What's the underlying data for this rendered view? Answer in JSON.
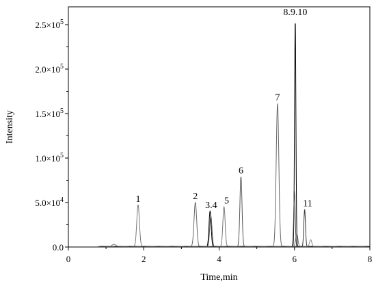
{
  "chart_data": {
    "type": "line",
    "title": "",
    "xlabel": "Time,min",
    "ylabel": "Intensity",
    "xlim": [
      0,
      8
    ],
    "ylim": [
      0,
      270000
    ],
    "grid": false,
    "x_ticks": [
      0,
      2,
      4,
      6,
      8
    ],
    "x_tick_labels": [
      "0",
      "2",
      "4",
      "6",
      "8"
    ],
    "y_ticks": [
      0,
      50000,
      100000,
      150000,
      200000,
      250000
    ],
    "y_tick_labels": [
      {
        "mantissa": "0.0",
        "exponent": ""
      },
      {
        "mantissa": "5.0×10",
        "exponent": "4"
      },
      {
        "mantissa": "1.0×10",
        "exponent": "5"
      },
      {
        "mantissa": "1.5×10",
        "exponent": "5"
      },
      {
        "mantissa": "2.0×10",
        "exponent": "5"
      },
      {
        "mantissa": "2.5×10",
        "exponent": "5"
      }
    ],
    "series": [
      {
        "peaks": [
          {
            "t": 1.21,
            "h": 2500,
            "w": 0.05
          },
          {
            "t": 1.85,
            "h": 47000,
            "w": 0.035
          }
        ],
        "color": "#777777"
      },
      {
        "peaks": [
          {
            "t": 3.37,
            "h": 50000,
            "w": 0.035
          }
        ],
        "color": "#666666"
      },
      {
        "peaks": [
          {
            "t": 3.76,
            "h": 40000,
            "w": 0.028
          }
        ],
        "color": "#000000"
      },
      {
        "peaks": [
          {
            "t": 3.78,
            "h": 35000,
            "w": 0.03
          }
        ],
        "color": "#555555"
      },
      {
        "peaks": [
          {
            "t": 4.13,
            "h": 45000,
            "w": 0.03
          }
        ],
        "color": "#777777"
      },
      {
        "peaks": [
          {
            "t": 4.58,
            "h": 79000,
            "w": 0.028
          }
        ],
        "color": "#555555"
      },
      {
        "peaks": [
          {
            "t": 5.55,
            "h": 161000,
            "w": 0.035
          }
        ],
        "color": "#666666"
      },
      {
        "peaks": [
          {
            "t": 6.02,
            "h": 257000,
            "w": 0.018
          }
        ],
        "color": "#000000"
      },
      {
        "peaks": [
          {
            "t": 6.0,
            "h": 62000,
            "w": 0.02
          }
        ],
        "color": "#444444"
      },
      {
        "peaks": [
          {
            "t": 6.06,
            "h": 15000,
            "w": 0.03
          }
        ],
        "color": "#777777"
      },
      {
        "peaks": [
          {
            "t": 6.27,
            "h": 42000,
            "w": 0.022
          }
        ],
        "color": "#333333"
      },
      {
        "peaks": [
          {
            "t": 6.43,
            "h": 8000,
            "w": 0.03
          }
        ],
        "color": "#888888"
      }
    ],
    "annotations": [
      {
        "text": "1",
        "x": 1.85,
        "y": 47000
      },
      {
        "text": "2",
        "x": 3.37,
        "y": 50000
      },
      {
        "text": "3.4",
        "x": 3.79,
        "y": 40000
      },
      {
        "text": "5",
        "x": 4.2,
        "y": 45000
      },
      {
        "text": "6",
        "x": 4.58,
        "y": 79000
      },
      {
        "text": "7",
        "x": 5.55,
        "y": 161000
      },
      {
        "text": "8.9.10",
        "x": 6.02,
        "y": 257000
      },
      {
        "text": "11",
        "x": 6.35,
        "y": 42000
      }
    ]
  }
}
